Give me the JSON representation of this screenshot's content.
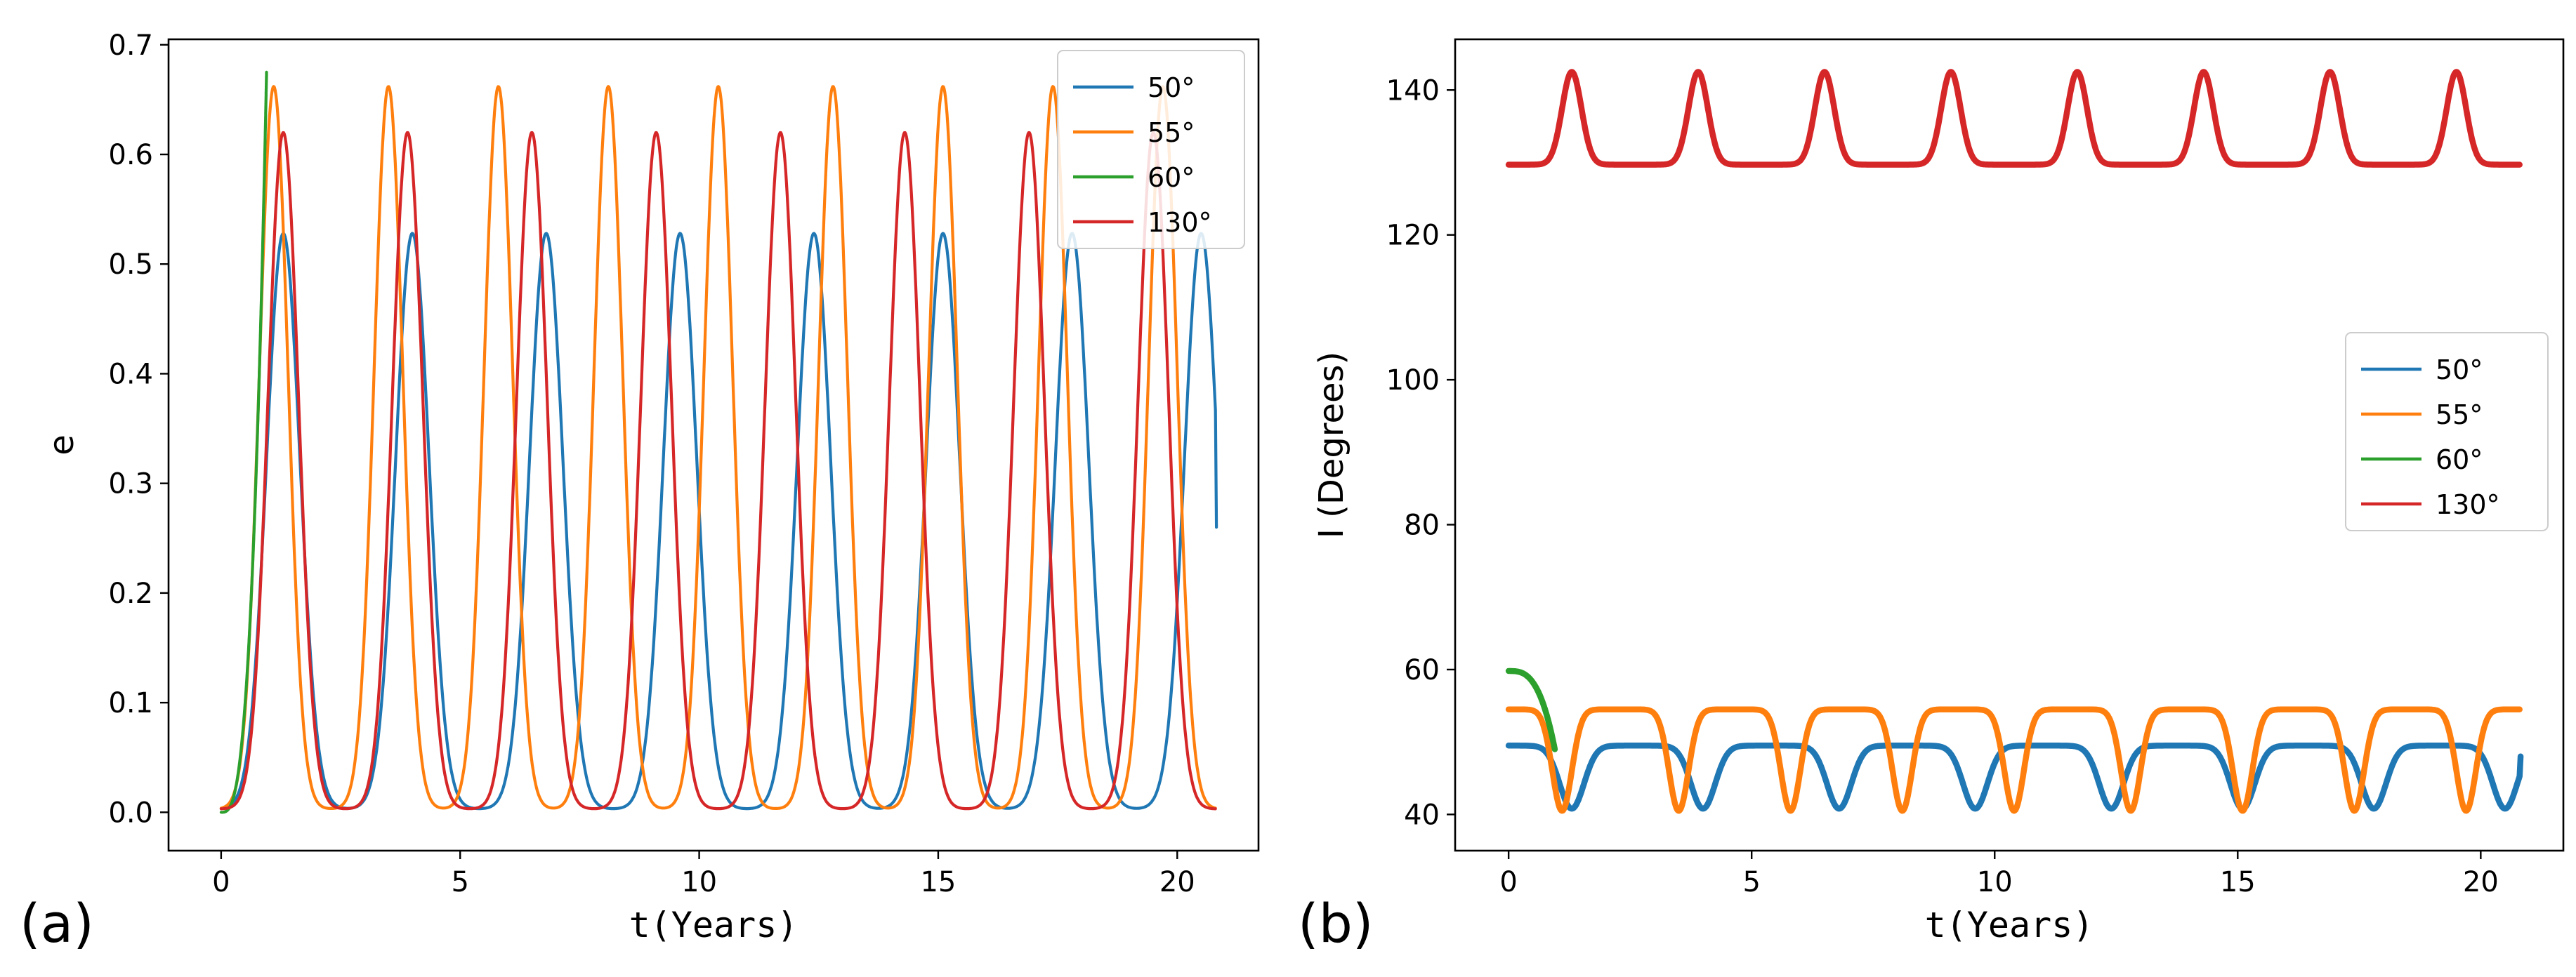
{
  "chart_data": [
    {
      "id": "a",
      "panel_label": "(a)",
      "type": "line",
      "title": "",
      "xlabel": "t(Years)",
      "ylabel": "e",
      "xlim": [
        -1.1,
        21.7
      ],
      "ylim": [
        -0.035,
        0.705
      ],
      "xticks": [
        0,
        5,
        10,
        15,
        20
      ],
      "xtick_labels": [
        "0",
        "5",
        "10",
        "15",
        "20"
      ],
      "yticks": [
        0.0,
        0.1,
        0.2,
        0.3,
        0.4,
        0.5,
        0.6,
        0.7
      ],
      "ytick_labels": [
        "0.0",
        "0.1",
        "0.2",
        "0.3",
        "0.4",
        "0.5",
        "0.6",
        "0.7"
      ],
      "legend_position": "top-right",
      "series": [
        {
          "name": "50°",
          "color": "#1f77b4",
          "kind": "kozai_e",
          "t_end": 20.8,
          "peak_times": [
            1.3,
            4.0,
            6.8,
            9.6,
            12.4,
            15.1,
            17.8,
            20.5
          ],
          "peak_value": 0.528,
          "base_value": 0.003,
          "width": 0.35,
          "end_value": 0.26
        },
        {
          "name": "55°",
          "color": "#ff7f0e",
          "kind": "kozai_e",
          "t_end": 20.8,
          "peak_times": [
            1.1,
            3.5,
            5.8,
            8.1,
            10.4,
            12.8,
            15.1,
            17.4,
            19.7
          ],
          "peak_value": 0.662,
          "base_value": 0.003,
          "width": 0.3
        },
        {
          "name": "60°",
          "color": "#2ca02c",
          "kind": "rise",
          "t_start": 0.0,
          "t_end": 0.95,
          "start_value": 0.0,
          "end_value": 0.675
        },
        {
          "name": "130°",
          "color": "#d62728",
          "kind": "kozai_e",
          "t_end": 20.8,
          "peak_times": [
            1.3,
            3.9,
            6.5,
            9.1,
            11.7,
            14.3,
            16.9,
            19.5
          ],
          "peak_value": 0.62,
          "base_value": 0.003,
          "width": 0.32
        }
      ]
    },
    {
      "id": "b",
      "panel_label": "(b)",
      "type": "line",
      "title": "",
      "xlabel": "t(Years)",
      "ylabel": "I (Degrees)",
      "xlim": [
        -1.1,
        21.7
      ],
      "ylim": [
        35.0,
        147.0
      ],
      "xticks": [
        0,
        5,
        10,
        15,
        20
      ],
      "xtick_labels": [
        "0",
        "5",
        "10",
        "15",
        "20"
      ],
      "yticks": [
        40,
        60,
        80,
        100,
        120,
        140
      ],
      "ytick_labels": [
        "40",
        "60",
        "80",
        "100",
        "120",
        "140"
      ],
      "legend_position": "center-right",
      "series": [
        {
          "name": "50°",
          "color": "#1f77b4",
          "kind": "kozai_i_down",
          "t_end": 20.8,
          "dip_times": [
            1.3,
            4.0,
            6.8,
            9.6,
            12.4,
            15.1,
            17.8,
            20.5
          ],
          "base_value": 49.5,
          "dip_value": 40.8,
          "width": 0.25,
          "end_value": 48.0
        },
        {
          "name": "55°",
          "color": "#ff7f0e",
          "kind": "kozai_i_down",
          "t_end": 20.8,
          "dip_times": [
            1.1,
            3.5,
            5.8,
            8.1,
            10.4,
            12.8,
            15.1,
            17.4,
            19.7
          ],
          "base_value": 54.5,
          "dip_value": 40.5,
          "width": 0.2
        },
        {
          "name": "60°",
          "color": "#2ca02c",
          "kind": "drop",
          "t_start": 0.0,
          "t_end": 0.95,
          "start_value": 59.8,
          "end_value": 49.0
        },
        {
          "name": "130°",
          "color": "#d62728",
          "kind": "kozai_i_up",
          "t_end": 20.8,
          "peak_times": [
            1.3,
            3.9,
            6.5,
            9.1,
            11.7,
            14.3,
            16.9,
            19.5
          ],
          "base_value": 129.7,
          "peak_value": 142.5,
          "width": 0.2
        }
      ]
    }
  ]
}
